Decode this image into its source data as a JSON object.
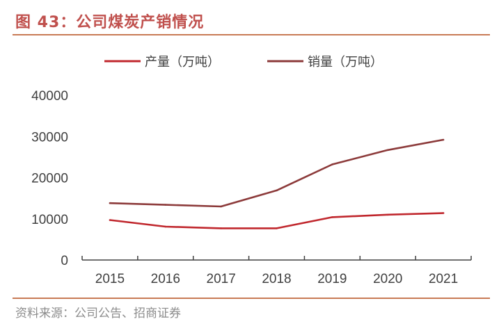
{
  "title": "图 43：公司煤炭产销情况",
  "source": "资料来源：公司公告、招商证券",
  "colors": {
    "title": "#c0504d",
    "rule": "#c87a55",
    "production": "#c0272d",
    "sales": "#8c3a3a",
    "axis": "#404040"
  },
  "chart_data": {
    "type": "line",
    "title": "",
    "xlabel": "",
    "ylabel": "",
    "x": [
      "2015",
      "2016",
      "2017",
      "2018",
      "2019",
      "2020",
      "2021"
    ],
    "series": [
      {
        "name": "产量（万吨）",
        "values": [
          9700,
          8100,
          7700,
          7700,
          10400,
          11000,
          11400
        ]
      },
      {
        "name": "销量（万吨）",
        "values": [
          13800,
          13400,
          13000,
          16900,
          23200,
          26700,
          29200
        ]
      }
    ],
    "ylim": [
      0,
      40000
    ],
    "yticks": [
      "0",
      "10000",
      "20000",
      "30000",
      "40000"
    ],
    "grid": false,
    "legend": "top"
  }
}
